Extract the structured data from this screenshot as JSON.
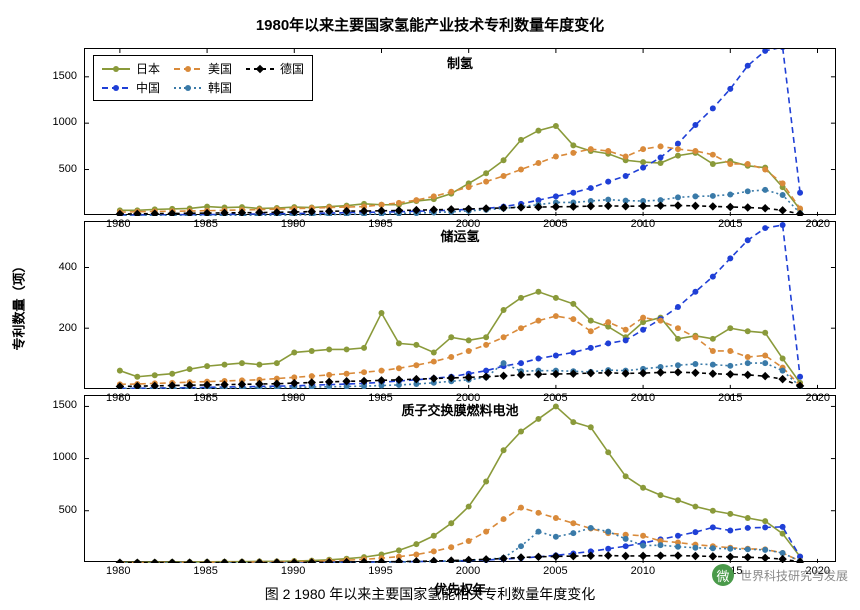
{
  "title": "1980年以来主要国家氢能产业技术专利数量年度变化",
  "caption": "图 2 1980 年以来主要国家氢能相关专利数量年度变化",
  "ylabel": "专利数量（项）",
  "xlabel": "优先权年",
  "watermark": {
    "icon": "微",
    "text": "世界科技研究与发展"
  },
  "title_fontsize": 15,
  "caption_fontsize": 14,
  "label_fontsize": 13,
  "tick_fontsize": 11,
  "legend_fontsize": 12,
  "background_color": "#ffffff",
  "axis_color": "#000000",
  "xlim": [
    1978,
    2021
  ],
  "xtick_start": 1980,
  "xtick_step": 5,
  "xtick_end": 2020,
  "marker_size": 3,
  "line_width": 1.6,
  "series": [
    {
      "key": "jp",
      "name": "日本",
      "color": "#8a9a3a",
      "dash": "",
      "marker": "circle"
    },
    {
      "key": "cn",
      "name": "中国",
      "color": "#1f3fd6",
      "dash": "6,4",
      "marker": "circle"
    },
    {
      "key": "us",
      "name": "美国",
      "color": "#d98a3a",
      "dash": "6,4",
      "marker": "circle"
    },
    {
      "key": "kr",
      "name": "韩国",
      "color": "#3a7aa8",
      "dash": "2,3",
      "marker": "circle"
    },
    {
      "key": "de",
      "name": "德国",
      "color": "#000000",
      "dash": "4,4",
      "marker": "diamond"
    }
  ],
  "legend_layout": [
    [
      "jp",
      "cn"
    ],
    [
      "us",
      "kr"
    ],
    [
      "de"
    ]
  ],
  "panels": [
    {
      "key": "h2prod",
      "title": "制氢",
      "ylim": [
        0,
        1800
      ],
      "ytick_step": 500,
      "ytick_values": [
        500,
        1000,
        1500
      ],
      "data": {
        "x": [
          1980,
          1981,
          1982,
          1983,
          1984,
          1985,
          1986,
          1987,
          1988,
          1989,
          1990,
          1991,
          1992,
          1993,
          1994,
          1995,
          1996,
          1997,
          1998,
          1999,
          2000,
          2001,
          2002,
          2003,
          2004,
          2005,
          2006,
          2007,
          2008,
          2009,
          2010,
          2011,
          2012,
          2013,
          2014,
          2015,
          2016,
          2017,
          2018,
          2019
        ],
        "jp": [
          60,
          60,
          70,
          75,
          80,
          100,
          90,
          95,
          80,
          85,
          95,
          90,
          100,
          110,
          130,
          120,
          120,
          160,
          180,
          240,
          350,
          460,
          600,
          820,
          920,
          970,
          760,
          700,
          670,
          600,
          580,
          570,
          650,
          680,
          560,
          590,
          540,
          520,
          310,
          70
        ],
        "cn": [
          10,
          10,
          12,
          12,
          14,
          14,
          16,
          18,
          20,
          22,
          25,
          28,
          30,
          35,
          38,
          40,
          45,
          50,
          55,
          62,
          70,
          80,
          100,
          130,
          170,
          210,
          250,
          300,
          370,
          430,
          520,
          630,
          780,
          980,
          1160,
          1370,
          1620,
          1780,
          1820,
          250
        ],
        "us": [
          40,
          45,
          48,
          50,
          52,
          56,
          60,
          64,
          68,
          72,
          78,
          84,
          90,
          95,
          100,
          120,
          140,
          170,
          210,
          260,
          310,
          370,
          430,
          500,
          570,
          640,
          680,
          720,
          700,
          640,
          720,
          750,
          720,
          700,
          660,
          560,
          560,
          500,
          350,
          80
        ],
        "kr": [
          2,
          2,
          3,
          3,
          4,
          4,
          5,
          6,
          7,
          8,
          10,
          12,
          14,
          16,
          18,
          22,
          26,
          30,
          36,
          44,
          54,
          66,
          80,
          100,
          120,
          145,
          145,
          160,
          175,
          165,
          160,
          170,
          200,
          210,
          215,
          230,
          265,
          280,
          225,
          30
        ],
        "de": [
          20,
          22,
          24,
          26,
          28,
          30,
          32,
          34,
          36,
          38,
          42,
          46,
          50,
          52,
          52,
          55,
          58,
          62,
          66,
          70,
          75,
          80,
          86,
          92,
          95,
          98,
          100,
          105,
          108,
          104,
          106,
          110,
          112,
          108,
          102,
          96,
          90,
          82,
          60,
          20
        ]
      }
    },
    {
      "key": "h2store",
      "title": "储运氢",
      "ylim": [
        0,
        550
      ],
      "ytick_step": 200,
      "ytick_values": [
        200,
        400
      ],
      "data": {
        "x": [
          1980,
          1981,
          1982,
          1983,
          1984,
          1985,
          1986,
          1987,
          1988,
          1989,
          1990,
          1991,
          1992,
          1993,
          1994,
          1995,
          1996,
          1997,
          1998,
          1999,
          2000,
          2001,
          2002,
          2003,
          2004,
          2005,
          2006,
          2007,
          2008,
          2009,
          2010,
          2011,
          2012,
          2013,
          2014,
          2015,
          2016,
          2017,
          2018,
          2019
        ],
        "jp": [
          60,
          40,
          45,
          50,
          65,
          75,
          80,
          85,
          80,
          85,
          120,
          125,
          130,
          130,
          135,
          250,
          150,
          145,
          120,
          170,
          160,
          170,
          260,
          300,
          320,
          300,
          280,
          225,
          205,
          170,
          220,
          235,
          165,
          175,
          165,
          200,
          190,
          185,
          100,
          20
        ],
        "cn": [
          2,
          2,
          3,
          3,
          4,
          5,
          6,
          7,
          8,
          9,
          10,
          12,
          14,
          16,
          18,
          22,
          26,
          30,
          35,
          40,
          50,
          60,
          75,
          85,
          100,
          110,
          120,
          135,
          150,
          160,
          195,
          230,
          270,
          320,
          370,
          430,
          490,
          530,
          540,
          40
        ],
        "us": [
          15,
          16,
          18,
          20,
          22,
          24,
          26,
          28,
          30,
          34,
          38,
          42,
          46,
          50,
          55,
          60,
          68,
          78,
          90,
          105,
          125,
          145,
          170,
          200,
          225,
          240,
          230,
          190,
          220,
          195,
          235,
          225,
          200,
          170,
          125,
          125,
          105,
          110,
          70,
          12
        ],
        "kr": [
          1,
          1,
          1,
          2,
          2,
          2,
          3,
          3,
          4,
          4,
          5,
          6,
          7,
          8,
          9,
          11,
          13,
          16,
          20,
          25,
          30,
          38,
          85,
          58,
          60,
          60,
          58,
          56,
          62,
          60,
          66,
          72,
          78,
          82,
          80,
          76,
          85,
          85,
          60,
          8
        ],
        "de": [
          8,
          9,
          10,
          11,
          12,
          13,
          14,
          15,
          16,
          17,
          19,
          21,
          23,
          25,
          26,
          28,
          30,
          32,
          34,
          36,
          38,
          40,
          43,
          46,
          48,
          49,
          50,
          52,
          53,
          51,
          52,
          54,
          55,
          53,
          50,
          48,
          46,
          42,
          32,
          10
        ]
      }
    },
    {
      "key": "pemfc",
      "title": "质子交换膜燃料电池",
      "ylim": [
        0,
        1600
      ],
      "ytick_step": 500,
      "ytick_values": [
        500,
        1000,
        1500
      ],
      "data": {
        "x": [
          1980,
          1981,
          1982,
          1983,
          1984,
          1985,
          1986,
          1987,
          1988,
          1989,
          1990,
          1991,
          1992,
          1993,
          1994,
          1995,
          1996,
          1997,
          1998,
          1999,
          2000,
          2001,
          2002,
          2003,
          2004,
          2005,
          2006,
          2007,
          2008,
          2009,
          2010,
          2011,
          2012,
          2013,
          2014,
          2015,
          2016,
          2017,
          2018,
          2019
        ],
        "jp": [
          5,
          6,
          7,
          8,
          9,
          10,
          11,
          12,
          14,
          15,
          18,
          22,
          30,
          40,
          55,
          80,
          120,
          180,
          260,
          380,
          540,
          780,
          1080,
          1260,
          1380,
          1500,
          1350,
          1300,
          1060,
          830,
          720,
          650,
          600,
          540,
          500,
          470,
          430,
          400,
          280,
          60
        ],
        "cn": [
          1,
          1,
          1,
          1,
          2,
          2,
          2,
          3,
          3,
          3,
          4,
          4,
          5,
          6,
          7,
          8,
          10,
          12,
          15,
          18,
          22,
          28,
          36,
          46,
          58,
          72,
          90,
          110,
          135,
          160,
          190,
          225,
          260,
          295,
          340,
          310,
          335,
          340,
          345,
          60
        ],
        "us": [
          2,
          2,
          3,
          3,
          4,
          5,
          6,
          7,
          8,
          10,
          12,
          15,
          20,
          26,
          34,
          45,
          60,
          80,
          110,
          150,
          210,
          300,
          420,
          530,
          480,
          430,
          380,
          330,
          285,
          270,
          260,
          210,
          195,
          175,
          160,
          145,
          135,
          130,
          95,
          18
        ],
        "kr": [
          0,
          0,
          0,
          0,
          1,
          1,
          1,
          1,
          2,
          2,
          2,
          3,
          3,
          4,
          5,
          6,
          8,
          10,
          14,
          18,
          24,
          34,
          48,
          160,
          300,
          250,
          285,
          335,
          300,
          230,
          165,
          170,
          155,
          145,
          140,
          135,
          130,
          125,
          95,
          15
        ],
        "de": [
          1,
          1,
          1,
          2,
          2,
          2,
          3,
          3,
          3,
          4,
          4,
          5,
          6,
          7,
          8,
          10,
          12,
          15,
          18,
          22,
          28,
          34,
          42,
          52,
          58,
          62,
          65,
          68,
          70,
          66,
          67,
          69,
          70,
          66,
          62,
          58,
          54,
          48,
          36,
          10
        ]
      }
    }
  ]
}
